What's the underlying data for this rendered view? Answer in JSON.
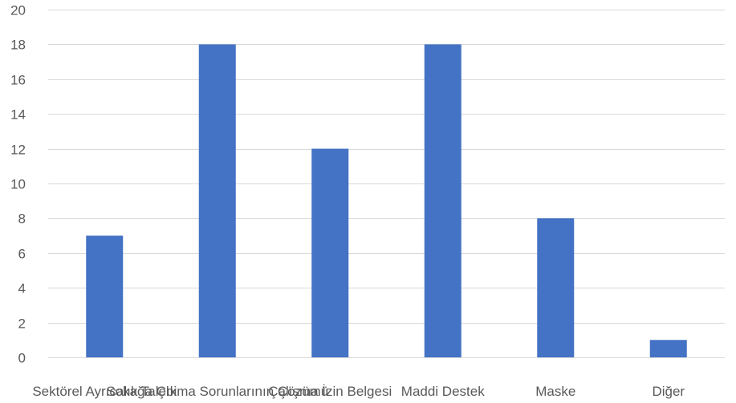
{
  "chart_data": {
    "type": "bar",
    "title": "",
    "xlabel": "",
    "ylabel": "",
    "categories": [
      "Sektörel Ayrıcalık Talebi",
      "Sokağa Çıkma Sorunlarının Çözümü",
      "Çalışma İzin Belgesi",
      "Maddi Destek",
      "Maske",
      "Diğer"
    ],
    "series": [
      {
        "values": [
          7,
          18,
          12,
          18,
          8,
          1
        ],
        "color": "#4472c4"
      }
    ],
    "ylim": [
      0,
      20
    ],
    "yticks": [
      0,
      2,
      4,
      6,
      8,
      10,
      12,
      14,
      16,
      18,
      20
    ],
    "grid": true,
    "legend": "none"
  }
}
